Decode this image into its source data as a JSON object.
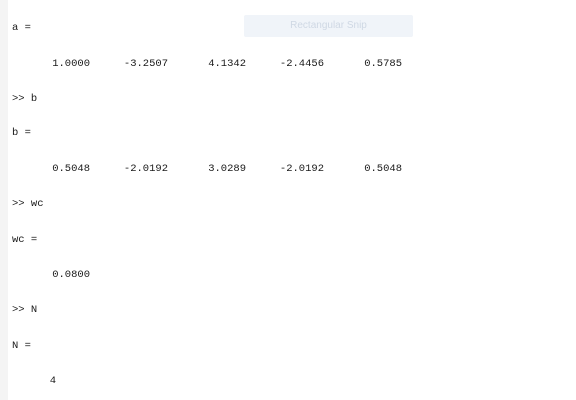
{
  "console": {
    "a_header": "a =",
    "a_values": [
      "1.0000",
      "-3.2507",
      "4.1342",
      "-2.4456",
      "0.5785"
    ],
    "cmd_b": ">> b",
    "b_header": "b =",
    "b_values": [
      "0.5048",
      "-2.0192",
      "3.0289",
      "-2.0192",
      "0.5048"
    ],
    "cmd_wc": ">> wc",
    "wc_header": "wc =",
    "wc_value": "0.0800",
    "cmd_N": ">> N",
    "N_header": "N =",
    "N_value": "4"
  },
  "overlay": {
    "label": "Rectangular Snip"
  }
}
